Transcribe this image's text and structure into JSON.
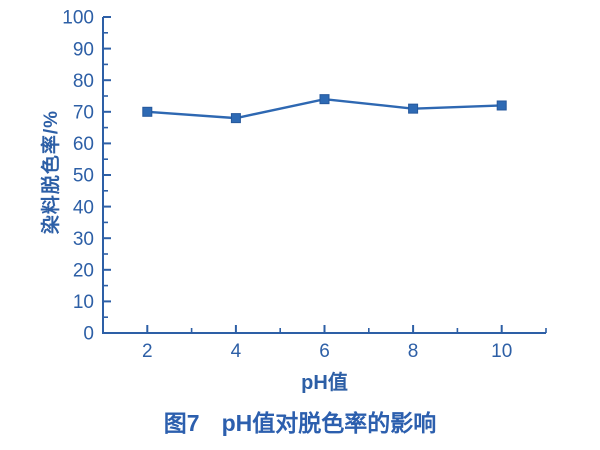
{
  "figure": {
    "caption_label": "图7",
    "caption_text": "pH值对脱色率的影响"
  },
  "chart_data": {
    "type": "line",
    "title": "图7 pH值对脱色率的影响",
    "xlabel": "pH值",
    "ylabel": "染料脱色率/%",
    "x": [
      2,
      4,
      6,
      8,
      10
    ],
    "series": [
      {
        "name": "染料脱色率",
        "values": [
          70,
          68,
          74,
          71,
          72
        ]
      }
    ],
    "xlim": [
      1,
      11
    ],
    "ylim": [
      0,
      100
    ],
    "x_tick_labels": [
      2,
      4,
      6,
      8,
      10
    ],
    "x_minor_ticks": [
      3,
      5,
      7,
      9,
      11
    ],
    "y_tick_labels": [
      0,
      10,
      20,
      30,
      40,
      50,
      60,
      70,
      80,
      90,
      100
    ],
    "y_minor_ticks": [
      5,
      15,
      25,
      35,
      45,
      55,
      65,
      75,
      85,
      95
    ],
    "grid": false,
    "legend": false,
    "marker": "square",
    "colors": {
      "axis": "#2d5fa6",
      "text": "#2d5fa6",
      "line": "#2e68b2",
      "marker": "#2e6ab4",
      "marker_edge": "#26589c",
      "caption": "#2c5fae",
      "background": "#ffffff"
    }
  }
}
